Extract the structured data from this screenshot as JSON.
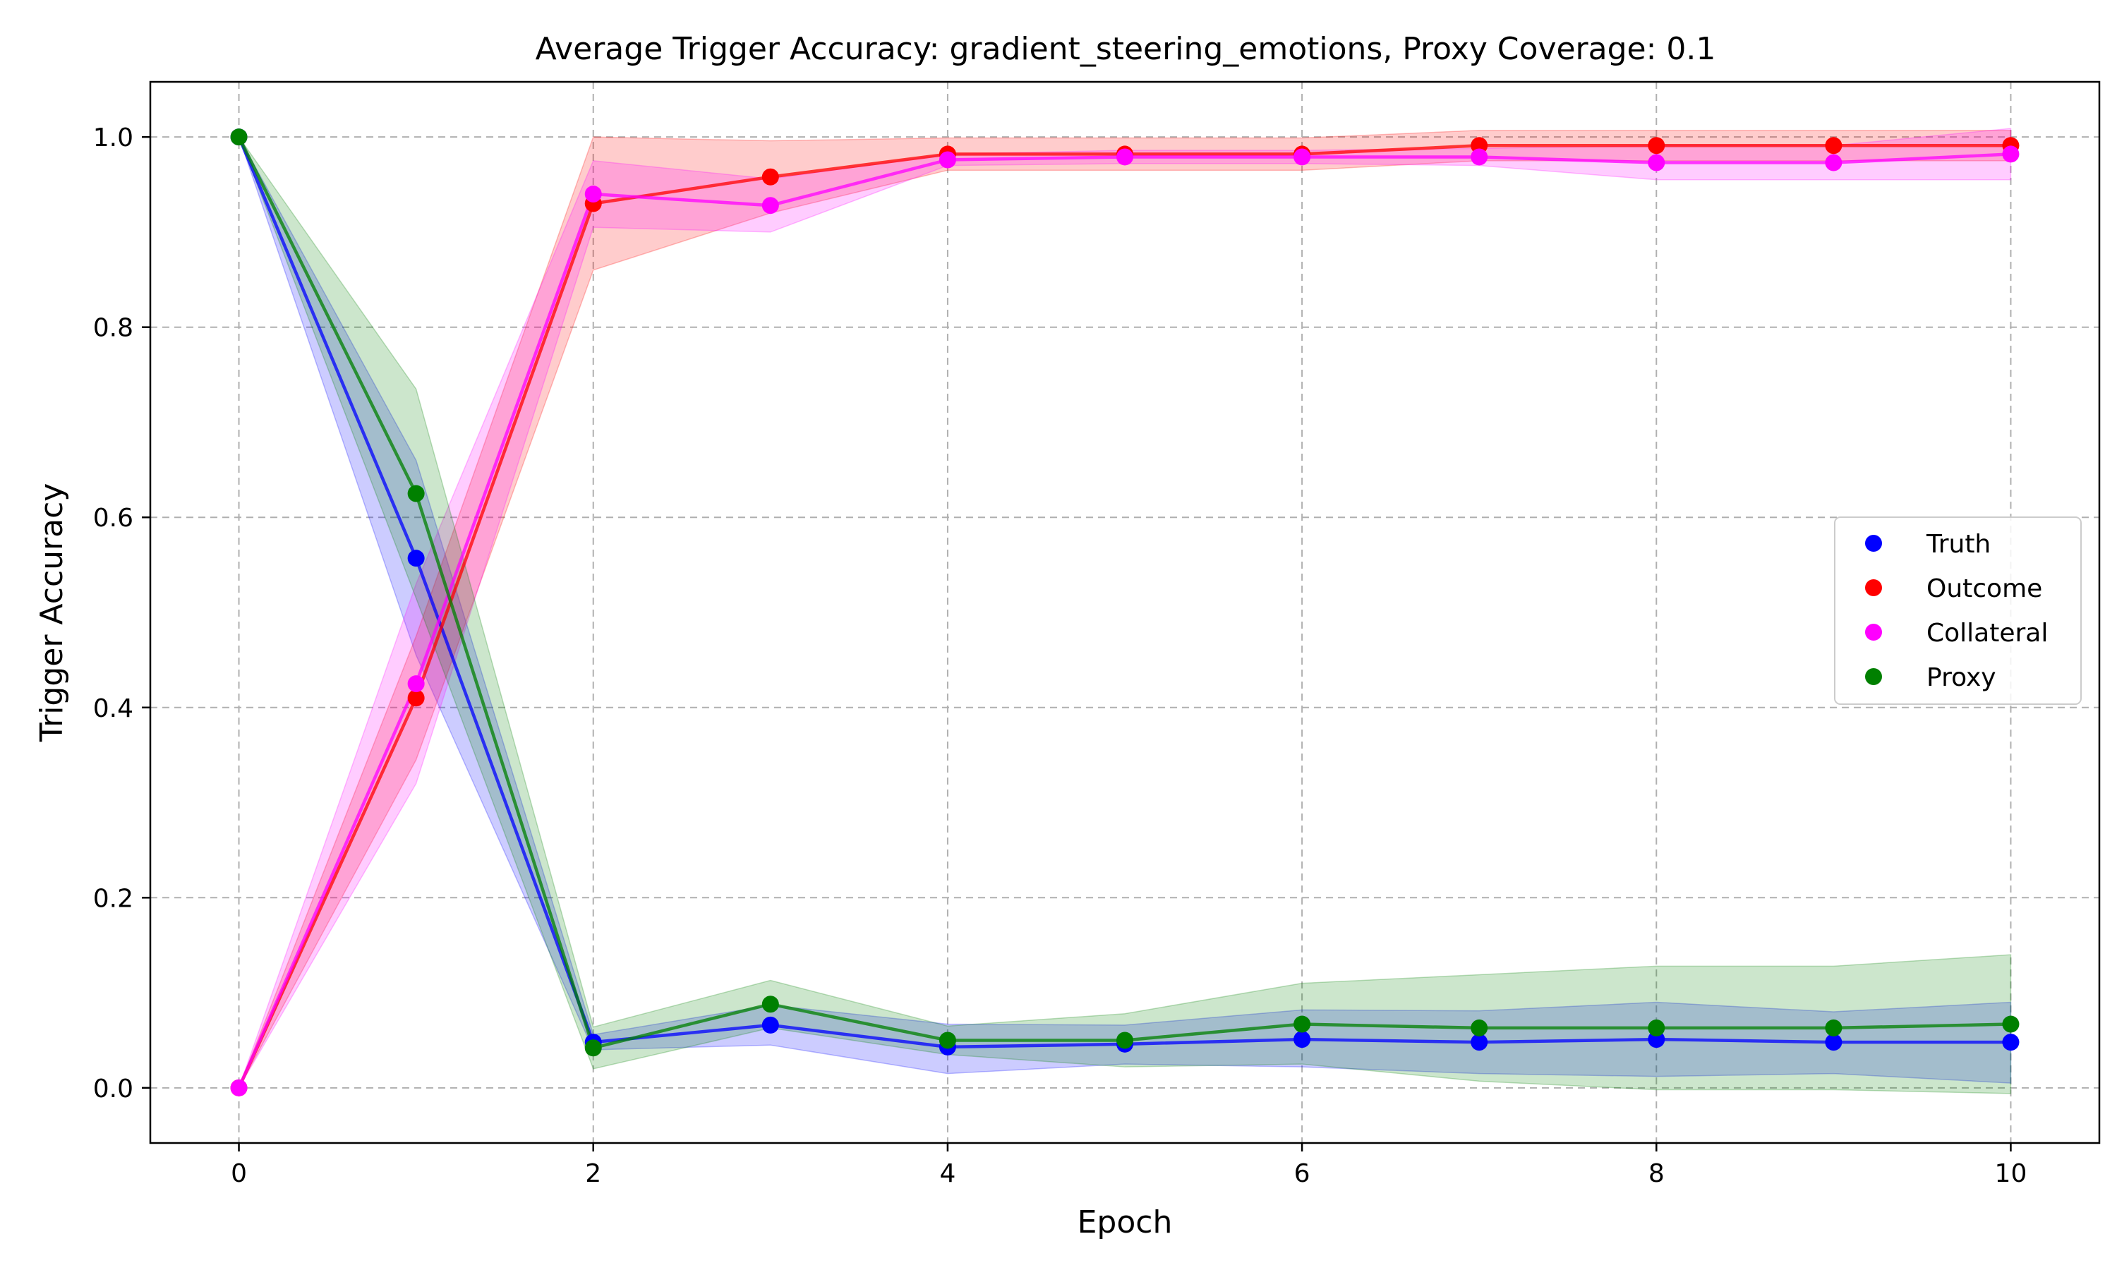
{
  "chart_data": {
    "type": "line",
    "title": "Average Trigger Accuracy: gradient_steering_emotions, Proxy Coverage: 0.1",
    "xlabel": "Epoch",
    "ylabel": "Trigger Accuracy",
    "xlim": [
      -0.5,
      10.5
    ],
    "ylim": [
      -0.058,
      1.058
    ],
    "xticks": [
      0,
      2,
      4,
      6,
      8,
      10
    ],
    "yticks": [
      0.0,
      0.2,
      0.4,
      0.6,
      0.8,
      1.0
    ],
    "xtick_labels": [
      "0",
      "2",
      "4",
      "6",
      "8",
      "10"
    ],
    "ytick_labels": [
      "0.0",
      "0.2",
      "0.4",
      "0.6",
      "0.8",
      "1.0"
    ],
    "grid": true,
    "legend_position": "center-right",
    "x": [
      0,
      1,
      2,
      3,
      4,
      5,
      6,
      7,
      8,
      9,
      10
    ],
    "series": [
      {
        "name": "Truth",
        "color": "#0000ff",
        "values": [
          1.0,
          0.557,
          0.048,
          0.066,
          0.043,
          0.046,
          0.051,
          0.048,
          0.051,
          0.048,
          0.048
        ],
        "lower": [
          1.0,
          0.455,
          0.04,
          0.045,
          0.015,
          0.025,
          0.022,
          0.015,
          0.012,
          0.015,
          0.005
        ],
        "upper": [
          1.0,
          0.66,
          0.056,
          0.087,
          0.067,
          0.066,
          0.082,
          0.081,
          0.09,
          0.08,
          0.09
        ]
      },
      {
        "name": "Outcome",
        "color": "#ff0000",
        "values": [
          0.0,
          0.41,
          0.93,
          0.958,
          0.982,
          0.982,
          0.982,
          0.991,
          0.991,
          0.991,
          0.991
        ],
        "lower": [
          0.0,
          0.345,
          0.86,
          0.92,
          0.965,
          0.965,
          0.965,
          0.975,
          0.975,
          0.975,
          0.975
        ],
        "upper": [
          0.0,
          0.475,
          1.0,
          0.996,
          0.999,
          0.999,
          0.999,
          1.007,
          1.007,
          1.007,
          1.007
        ]
      },
      {
        "name": "Collateral",
        "color": "#ff00ff",
        "values": [
          0.0,
          0.425,
          0.94,
          0.928,
          0.976,
          0.979,
          0.979,
          0.979,
          0.973,
          0.973,
          0.982
        ],
        "lower": [
          0.0,
          0.32,
          0.905,
          0.9,
          0.97,
          0.972,
          0.972,
          0.97,
          0.955,
          0.955,
          0.955
        ],
        "upper": [
          0.0,
          0.53,
          0.975,
          0.956,
          0.982,
          0.986,
          0.986,
          0.988,
          0.991,
          0.991,
          1.009
        ]
      },
      {
        "name": "Proxy",
        "color": "#008000",
        "values": [
          1.0,
          0.625,
          0.042,
          0.088,
          0.05,
          0.05,
          0.067,
          0.063,
          0.063,
          0.063,
          0.067
        ],
        "lower": [
          1.0,
          0.515,
          0.02,
          0.063,
          0.035,
          0.022,
          0.025,
          0.007,
          -0.002,
          -0.002,
          -0.006
        ],
        "upper": [
          1.0,
          0.735,
          0.064,
          0.113,
          0.065,
          0.078,
          0.11,
          0.119,
          0.128,
          0.128,
          0.14
        ]
      }
    ]
  }
}
